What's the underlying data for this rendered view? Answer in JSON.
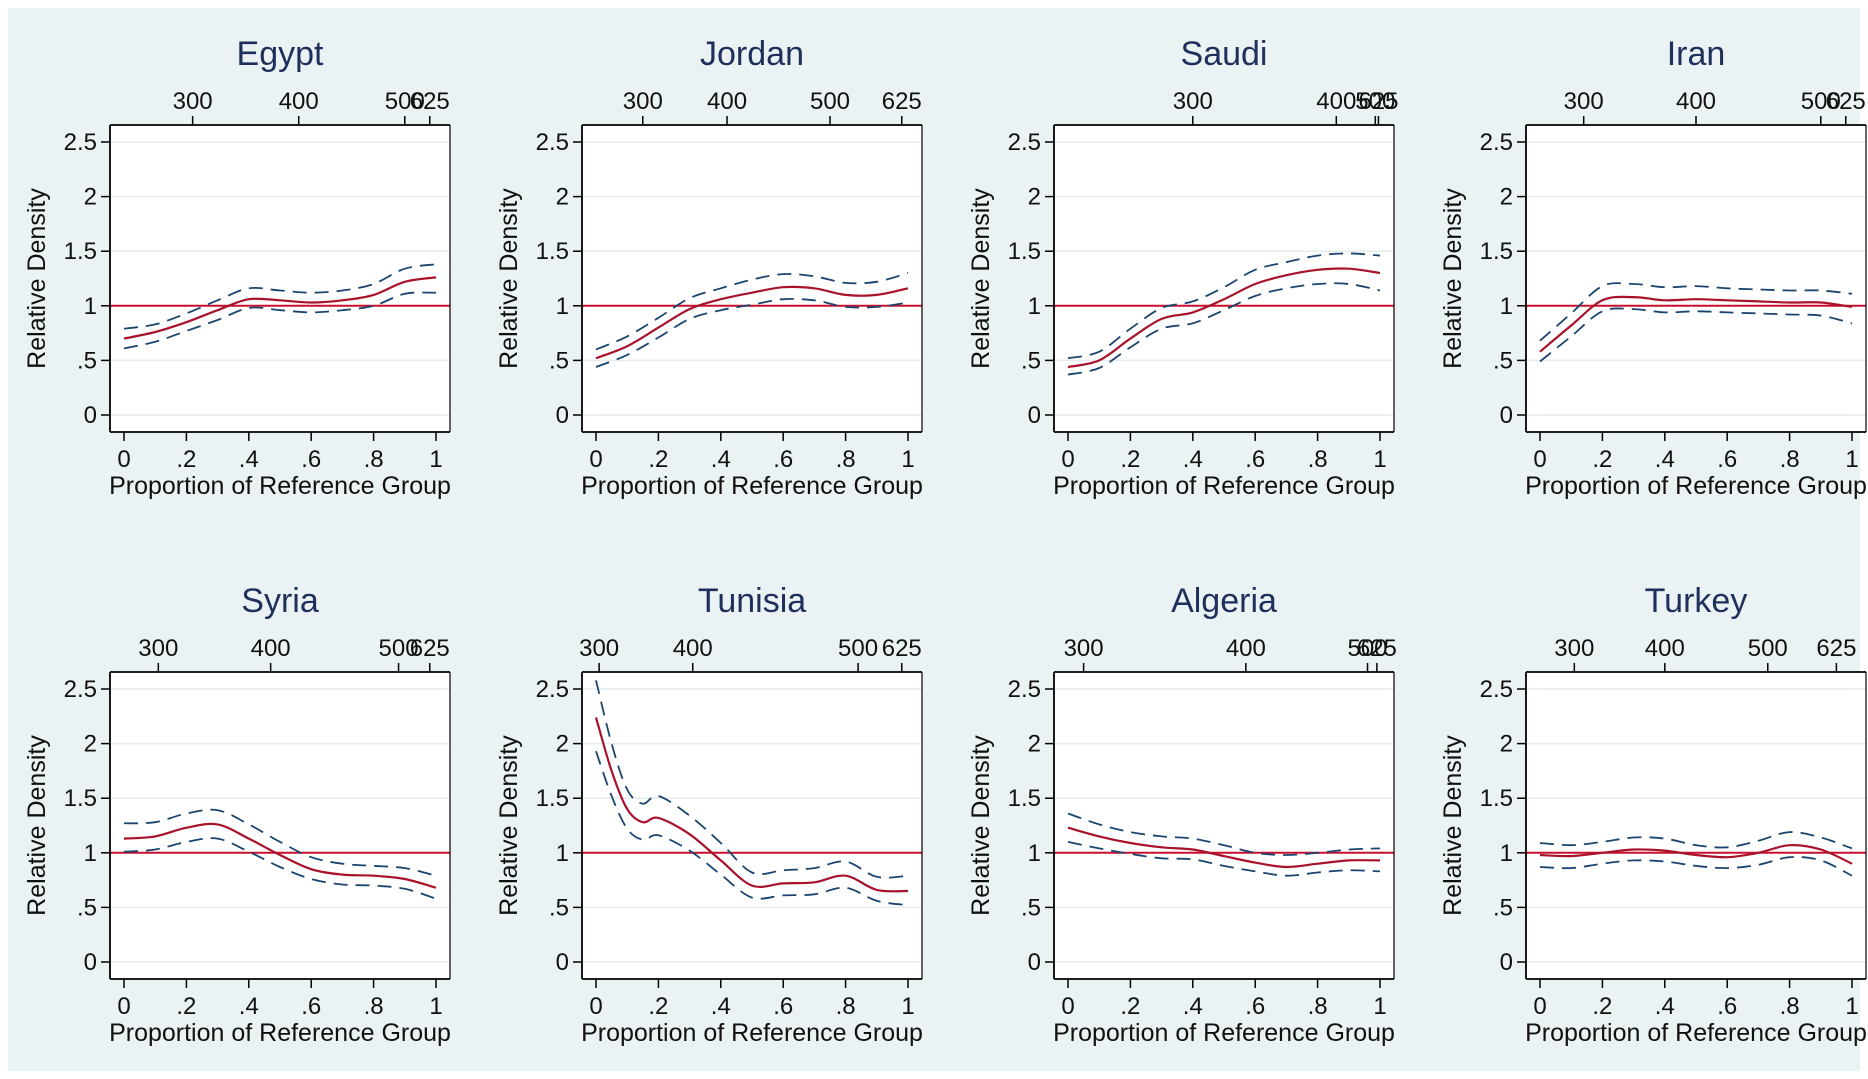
{
  "figure": {
    "background": "#eaf2f3",
    "plot_background": "#ffffff",
    "colors": {
      "estimate": "#a8122a",
      "confidence_band": "#1a4570",
      "reference_line": "#c8102e",
      "grid": "#e6ebee",
      "axis": "#000000",
      "title": "#1f2f5c"
    }
  },
  "chart_data": [
    {
      "type": "line",
      "title": "Egypt",
      "xlabel": "Proportion of Reference Group",
      "ylabel": "Relative Density",
      "xlim": [
        0,
        1
      ],
      "ylim": [
        0,
        2.5
      ],
      "x_ticks": [
        "0",
        ".2",
        ".4",
        ".6",
        ".8",
        "1"
      ],
      "y_ticks": [
        "0",
        ".5",
        "1",
        "1.5",
        "2",
        "2.5"
      ],
      "top_axis": [
        {
          "label": "300",
          "at": 0.22
        },
        {
          "label": "400",
          "at": 0.56
        },
        {
          "label": "500",
          "at": 0.9
        },
        {
          "label": "625",
          "at": 0.98
        }
      ],
      "reference_line": 1,
      "x": [
        0,
        0.1,
        0.2,
        0.3,
        0.4,
        0.5,
        0.6,
        0.7,
        0.8,
        0.9,
        1.0
      ],
      "series": [
        {
          "role": "estimate",
          "values": [
            0.7,
            0.76,
            0.85,
            0.96,
            1.06,
            1.05,
            1.03,
            1.05,
            1.1,
            1.22,
            1.26
          ]
        },
        {
          "role": "upper",
          "values": [
            0.79,
            0.83,
            0.93,
            1.05,
            1.16,
            1.14,
            1.12,
            1.14,
            1.2,
            1.34,
            1.38
          ]
        },
        {
          "role": "lower",
          "values": [
            0.61,
            0.67,
            0.77,
            0.87,
            0.98,
            0.96,
            0.94,
            0.96,
            1.0,
            1.11,
            1.12
          ]
        }
      ]
    },
    {
      "type": "line",
      "title": "Jordan",
      "xlabel": "Proportion of Reference Group",
      "ylabel": "Relative Density",
      "xlim": [
        0,
        1
      ],
      "ylim": [
        0,
        2.5
      ],
      "x_ticks": [
        "0",
        ".2",
        ".4",
        ".6",
        ".8",
        "1"
      ],
      "y_ticks": [
        "0",
        ".5",
        "1",
        "1.5",
        "2",
        "2.5"
      ],
      "top_axis": [
        {
          "label": "300",
          "at": 0.15
        },
        {
          "label": "400",
          "at": 0.42
        },
        {
          "label": "500",
          "at": 0.75
        },
        {
          "label": "625",
          "at": 0.98
        }
      ],
      "reference_line": 1,
      "x": [
        0,
        0.1,
        0.2,
        0.3,
        0.4,
        0.5,
        0.6,
        0.7,
        0.8,
        0.9,
        1.0
      ],
      "series": [
        {
          "role": "estimate",
          "values": [
            0.52,
            0.63,
            0.8,
            0.97,
            1.06,
            1.12,
            1.17,
            1.16,
            1.1,
            1.1,
            1.16
          ]
        },
        {
          "role": "upper",
          "values": [
            0.6,
            0.72,
            0.89,
            1.07,
            1.16,
            1.24,
            1.29,
            1.27,
            1.21,
            1.22,
            1.3
          ]
        },
        {
          "role": "lower",
          "values": [
            0.44,
            0.55,
            0.71,
            0.88,
            0.96,
            1.01,
            1.06,
            1.05,
            0.99,
            0.99,
            1.03
          ]
        }
      ]
    },
    {
      "type": "line",
      "title": "Saudi",
      "xlabel": "Proportion of Reference Group",
      "ylabel": "Relative Density",
      "xlim": [
        0,
        1
      ],
      "ylim": [
        0,
        2.5
      ],
      "x_ticks": [
        "0",
        ".2",
        ".4",
        ".6",
        ".8",
        "1"
      ],
      "y_ticks": [
        "0",
        ".5",
        "1",
        "1.5",
        "2",
        "2.5"
      ],
      "top_axis": [
        {
          "label": "300",
          "at": 0.4
        },
        {
          "label": "400",
          "at": 0.86
        },
        {
          "label": "500",
          "at": 0.985
        },
        {
          "label": "625",
          "at": 0.995
        }
      ],
      "reference_line": 1,
      "x": [
        0,
        0.1,
        0.2,
        0.3,
        0.4,
        0.5,
        0.6,
        0.7,
        0.8,
        0.9,
        1.0
      ],
      "series": [
        {
          "role": "estimate",
          "values": [
            0.44,
            0.5,
            0.7,
            0.88,
            0.94,
            1.06,
            1.2,
            1.28,
            1.33,
            1.34,
            1.3
          ]
        },
        {
          "role": "upper",
          "values": [
            0.52,
            0.58,
            0.79,
            0.98,
            1.04,
            1.17,
            1.33,
            1.4,
            1.46,
            1.48,
            1.46
          ]
        },
        {
          "role": "lower",
          "values": [
            0.37,
            0.43,
            0.62,
            0.79,
            0.84,
            0.96,
            1.09,
            1.16,
            1.2,
            1.2,
            1.14
          ]
        }
      ]
    },
    {
      "type": "line",
      "title": "Iran",
      "xlabel": "Proportion of Reference Group",
      "ylabel": "Relative Density",
      "xlim": [
        0,
        1
      ],
      "ylim": [
        0,
        2.5
      ],
      "x_ticks": [
        "0",
        ".2",
        ".4",
        ".6",
        ".8",
        "1"
      ],
      "y_ticks": [
        "0",
        ".5",
        "1",
        "1.5",
        "2",
        "2.5"
      ],
      "top_axis": [
        {
          "label": "300",
          "at": 0.14
        },
        {
          "label": "400",
          "at": 0.5
        },
        {
          "label": "500",
          "at": 0.9
        },
        {
          "label": "625",
          "at": 0.98
        }
      ],
      "reference_line": 1,
      "x": [
        0,
        0.1,
        0.2,
        0.3,
        0.4,
        0.5,
        0.6,
        0.7,
        0.8,
        0.9,
        1.0
      ],
      "series": [
        {
          "role": "estimate",
          "values": [
            0.58,
            0.82,
            1.05,
            1.08,
            1.05,
            1.06,
            1.05,
            1.04,
            1.03,
            1.03,
            0.99
          ]
        },
        {
          "role": "upper",
          "values": [
            0.68,
            0.93,
            1.18,
            1.2,
            1.17,
            1.18,
            1.16,
            1.15,
            1.14,
            1.14,
            1.11
          ]
        },
        {
          "role": "lower",
          "values": [
            0.49,
            0.72,
            0.95,
            0.97,
            0.94,
            0.95,
            0.94,
            0.93,
            0.92,
            0.91,
            0.84
          ]
        }
      ]
    },
    {
      "type": "line",
      "title": "Syria",
      "xlabel": "Proportion of Reference Group",
      "ylabel": "Relative Density",
      "xlim": [
        0,
        1
      ],
      "ylim": [
        0,
        2.5
      ],
      "x_ticks": [
        "0",
        ".2",
        ".4",
        ".6",
        ".8",
        "1"
      ],
      "y_ticks": [
        "0",
        ".5",
        "1",
        "1.5",
        "2",
        "2.5"
      ],
      "top_axis": [
        {
          "label": "300",
          "at": 0.11
        },
        {
          "label": "400",
          "at": 0.47
        },
        {
          "label": "500",
          "at": 0.88
        },
        {
          "label": "625",
          "at": 0.98
        }
      ],
      "reference_line": 1,
      "x": [
        0,
        0.1,
        0.2,
        0.3,
        0.4,
        0.5,
        0.6,
        0.7,
        0.8,
        0.9,
        1.0
      ],
      "series": [
        {
          "role": "estimate",
          "values": [
            1.13,
            1.15,
            1.23,
            1.26,
            1.13,
            0.98,
            0.85,
            0.8,
            0.79,
            0.76,
            0.68
          ]
        },
        {
          "role": "upper",
          "values": [
            1.27,
            1.28,
            1.36,
            1.39,
            1.26,
            1.1,
            0.96,
            0.9,
            0.88,
            0.86,
            0.79
          ]
        },
        {
          "role": "lower",
          "values": [
            1.01,
            1.03,
            1.1,
            1.13,
            1.01,
            0.87,
            0.76,
            0.71,
            0.7,
            0.67,
            0.58
          ]
        }
      ]
    },
    {
      "type": "line",
      "title": "Tunisia",
      "xlabel": "Proportion of Reference Group",
      "ylabel": "Relative Density",
      "xlim": [
        0,
        1
      ],
      "ylim": [
        0,
        2.5
      ],
      "x_ticks": [
        "0",
        ".2",
        ".4",
        ".6",
        ".8",
        "1"
      ],
      "y_ticks": [
        "0",
        ".5",
        "1",
        "1.5",
        "2",
        "2.5"
      ],
      "top_axis": [
        {
          "label": "300",
          "at": 0.01
        },
        {
          "label": "400",
          "at": 0.31
        },
        {
          "label": "500",
          "at": 0.84
        },
        {
          "label": "625",
          "at": 0.98
        }
      ],
      "reference_line": 1,
      "x": [
        0,
        0.05,
        0.1,
        0.15,
        0.2,
        0.3,
        0.4,
        0.5,
        0.6,
        0.7,
        0.8,
        0.9,
        1.0
      ],
      "series": [
        {
          "role": "estimate",
          "values": [
            2.24,
            1.75,
            1.4,
            1.28,
            1.32,
            1.17,
            0.93,
            0.7,
            0.72,
            0.73,
            0.79,
            0.66,
            0.65
          ]
        },
        {
          "role": "upper",
          "values": [
            2.58,
            2.0,
            1.58,
            1.45,
            1.52,
            1.34,
            1.09,
            0.82,
            0.84,
            0.86,
            0.92,
            0.78,
            0.79
          ]
        },
        {
          "role": "lower",
          "values": [
            1.93,
            1.52,
            1.22,
            1.12,
            1.16,
            1.02,
            0.8,
            0.59,
            0.61,
            0.62,
            0.68,
            0.56,
            0.52
          ]
        }
      ]
    },
    {
      "type": "line",
      "title": "Algeria",
      "xlabel": "Proportion of Reference Group",
      "ylabel": "Relative Density",
      "xlim": [
        0,
        1
      ],
      "ylim": [
        0,
        2.5
      ],
      "x_ticks": [
        "0",
        ".2",
        ".4",
        ".6",
        ".8",
        "1"
      ],
      "y_ticks": [
        "0",
        ".5",
        "1",
        "1.5",
        "2",
        "2.5"
      ],
      "top_axis": [
        {
          "label": "300",
          "at": 0.05
        },
        {
          "label": "400",
          "at": 0.57
        },
        {
          "label": "500",
          "at": 0.96
        },
        {
          "label": "625",
          "at": 0.99
        }
      ],
      "reference_line": 1,
      "x": [
        0,
        0.1,
        0.2,
        0.3,
        0.4,
        0.5,
        0.6,
        0.7,
        0.8,
        0.9,
        1.0
      ],
      "series": [
        {
          "role": "estimate",
          "values": [
            1.23,
            1.15,
            1.09,
            1.05,
            1.03,
            0.97,
            0.91,
            0.87,
            0.9,
            0.93,
            0.93
          ]
        },
        {
          "role": "upper",
          "values": [
            1.36,
            1.26,
            1.19,
            1.15,
            1.13,
            1.07,
            1.0,
            0.98,
            1.0,
            1.03,
            1.04
          ]
        },
        {
          "role": "lower",
          "values": [
            1.1,
            1.04,
            0.99,
            0.95,
            0.94,
            0.88,
            0.83,
            0.79,
            0.82,
            0.84,
            0.83
          ]
        }
      ]
    },
    {
      "type": "line",
      "title": "Turkey",
      "xlabel": "Proportion of Reference Group",
      "ylabel": "Relative Density",
      "xlim": [
        0,
        1
      ],
      "ylim": [
        0,
        2.5
      ],
      "x_ticks": [
        "0",
        ".2",
        ".4",
        ".6",
        ".8",
        "1"
      ],
      "y_ticks": [
        "0",
        ".5",
        "1",
        "1.5",
        "2",
        "2.5"
      ],
      "top_axis": [
        {
          "label": "300",
          "at": 0.11
        },
        {
          "label": "400",
          "at": 0.4
        },
        {
          "label": "500",
          "at": 0.73
        },
        {
          "label": "625",
          "at": 0.95
        }
      ],
      "reference_line": 1,
      "x": [
        0,
        0.1,
        0.2,
        0.3,
        0.4,
        0.5,
        0.6,
        0.7,
        0.8,
        0.9,
        1.0
      ],
      "series": [
        {
          "role": "estimate",
          "values": [
            0.98,
            0.97,
            1.0,
            1.03,
            1.02,
            0.98,
            0.96,
            1.0,
            1.07,
            1.03,
            0.9
          ]
        },
        {
          "role": "upper",
          "values": [
            1.09,
            1.07,
            1.1,
            1.14,
            1.13,
            1.07,
            1.05,
            1.11,
            1.19,
            1.14,
            1.04
          ]
        },
        {
          "role": "lower",
          "values": [
            0.87,
            0.86,
            0.9,
            0.93,
            0.92,
            0.88,
            0.86,
            0.89,
            0.96,
            0.93,
            0.79
          ]
        }
      ]
    }
  ]
}
